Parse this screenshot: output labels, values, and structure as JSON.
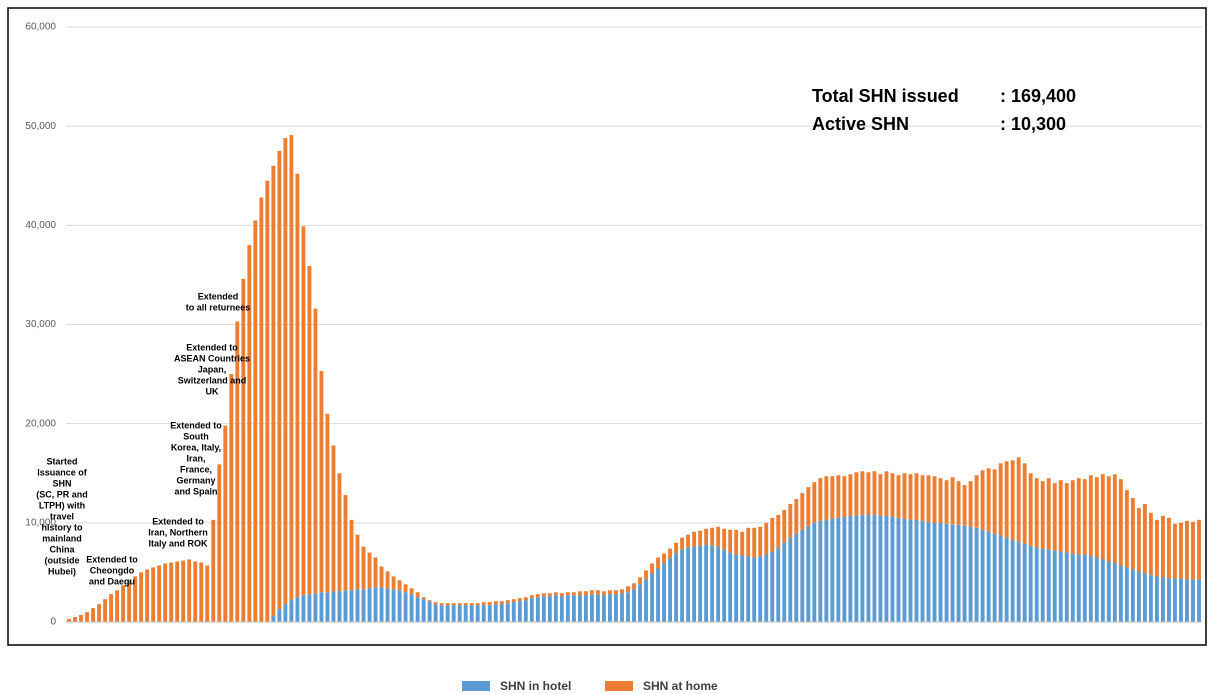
{
  "chart_data": {
    "type": "stacked-bar",
    "categories": [
      null,
      null,
      null,
      null,
      null,
      null,
      null,
      null,
      null,
      null,
      null,
      null,
      null,
      null,
      null,
      null,
      null,
      null,
      null,
      null,
      null,
      null,
      null,
      null,
      null,
      null,
      null,
      null,
      null,
      null,
      null,
      null,
      null,
      null,
      null,
      null,
      null,
      null,
      null,
      null,
      null,
      null,
      null,
      null,
      null,
      null,
      null,
      null,
      null,
      null,
      null,
      null,
      null,
      null,
      null,
      null,
      null,
      null,
      null,
      null,
      null,
      null,
      null,
      null,
      null,
      null,
      null,
      null,
      null,
      null,
      null,
      null,
      null,
      null,
      null,
      null,
      null,
      null,
      null,
      null,
      null,
      null,
      null,
      null,
      null,
      null,
      null,
      null,
      null,
      null,
      null,
      null,
      null,
      null,
      null,
      null,
      null,
      null,
      null,
      null,
      null,
      null,
      null,
      null,
      null,
      null,
      null,
      null,
      null,
      null,
      null,
      null,
      null,
      null,
      null,
      null,
      null,
      null,
      null,
      null,
      null,
      null,
      null,
      null,
      null,
      null,
      null,
      null,
      null,
      null,
      null,
      null,
      null,
      null,
      null,
      null,
      null,
      null,
      null,
      null,
      null,
      null,
      null,
      null,
      null,
      null,
      null,
      null,
      null,
      null,
      null,
      null,
      null,
      null,
      null,
      null,
      null,
      null,
      null,
      null,
      null,
      null,
      null,
      null,
      null,
      null,
      null,
      null,
      null,
      null,
      null,
      null,
      null,
      null,
      null,
      null,
      null,
      null,
      null,
      null,
      null,
      null,
      null,
      null,
      null,
      null,
      null,
      null,
      null
    ],
    "series": [
      {
        "name": "SHN in hotel",
        "color": "#5b9bd5",
        "values": [
          0,
          0,
          0,
          0,
          0,
          0,
          0,
          0,
          0,
          0,
          0,
          0,
          0,
          0,
          0,
          0,
          0,
          0,
          0,
          0,
          0,
          0,
          0,
          0,
          0,
          0,
          0,
          0,
          0,
          0,
          0,
          0,
          0,
          0,
          600,
          1300,
          1800,
          2200,
          2500,
          2700,
          2800,
          2900,
          3000,
          3000,
          3100,
          3100,
          3200,
          3200,
          3300,
          3300,
          3400,
          3500,
          3500,
          3400,
          3300,
          3200,
          3000,
          2800,
          2500,
          2300,
          2100,
          1800,
          1700,
          1700,
          1700,
          1700,
          1700,
          1700,
          1700,
          1700,
          1700,
          1800,
          1800,
          1900,
          2000,
          2100,
          2200,
          2400,
          2500,
          2600,
          2600,
          2700,
          2600,
          2700,
          2700,
          2700,
          2700,
          2800,
          2800,
          2700,
          2800,
          2800,
          2900,
          3000,
          3300,
          3800,
          4300,
          4900,
          5400,
          5900,
          6400,
          6900,
          7300,
          7500,
          7600,
          7700,
          7800,
          7700,
          7600,
          7300,
          7000,
          6800,
          6700,
          6600,
          6500,
          6600,
          6800,
          7100,
          7500,
          8000,
          8500,
          8900,
          9300,
          9700,
          10000,
          10200,
          10300,
          10400,
          10500,
          10600,
          10700,
          10700,
          10800,
          10800,
          10800,
          10700,
          10700,
          10600,
          10500,
          10400,
          10300,
          10300,
          10200,
          10100,
          10000,
          10000,
          9900,
          9800,
          9800,
          9700,
          9600,
          9500,
          9300,
          9100,
          8900,
          8700,
          8500,
          8300,
          8100,
          7900,
          7700,
          7500,
          7400,
          7300,
          7200,
          7100,
          7000,
          6900,
          6800,
          6800,
          6700,
          6500,
          6300,
          6100,
          5900,
          5700,
          5500,
          5300,
          5100,
          4900,
          4700,
          4600,
          4500,
          4400,
          4400,
          4400,
          4300,
          4300,
          4300
        ]
      },
      {
        "name": "SHN at home",
        "color": "#ed7d31",
        "values": [
          300,
          500,
          700,
          1000,
          1400,
          1800,
          2300,
          2800,
          3200,
          3700,
          4200,
          4600,
          5000,
          5300,
          5500,
          5700,
          5900,
          6000,
          6100,
          6200,
          6300,
          6100,
          6000,
          5700,
          10300,
          15900,
          19800,
          25000,
          30300,
          34600,
          38000,
          40500,
          42800,
          44500,
          45400,
          46200,
          47000,
          46900,
          42700,
          37200,
          33100,
          28700,
          22300,
          18000,
          14700,
          11900,
          9600,
          7100,
          5500,
          4300,
          3600,
          3000,
          2100,
          1700,
          1300,
          1000,
          800,
          600,
          500,
          200,
          100,
          200,
          200,
          200,
          200,
          200,
          200,
          200,
          200,
          300,
          300,
          300,
          300,
          300,
          300,
          300,
          300,
          300,
          300,
          300,
          300,
          300,
          300,
          300,
          300,
          400,
          400,
          400,
          400,
          400,
          400,
          400,
          400,
          600,
          600,
          700,
          900,
          1000,
          1100,
          1000,
          1000,
          1100,
          1200,
          1300,
          1500,
          1500,
          1600,
          1800,
          2000,
          2100,
          2300,
          2500,
          2400,
          2900,
          3000,
          3000,
          3200,
          3400,
          3300,
          3300,
          3400,
          3500,
          3700,
          3900,
          4100,
          4300,
          4400,
          4300,
          4300,
          4100,
          4200,
          4400,
          4400,
          4300,
          4400,
          4200,
          4500,
          4400,
          4300,
          4600,
          4600,
          4700,
          4600,
          4700,
          4700,
          4500,
          4400,
          4800,
          4400,
          4100,
          4600,
          5300,
          6000,
          6400,
          6500,
          7300,
          7700,
          8000,
          8500,
          8100,
          7300,
          7000,
          6800,
          7200,
          6800,
          7200,
          7000,
          7400,
          7700,
          7600,
          8100,
          8100,
          8600,
          8600,
          9000,
          8700,
          7800,
          7200,
          6400,
          7000,
          6300,
          5700,
          6200,
          6100,
          5500,
          5600,
          5900,
          5800,
          6000
        ]
      }
    ],
    "ylim": [
      0,
      60000
    ],
    "yticks": [
      0,
      {
        "value": 10000,
        "label": "10,000"
      },
      {
        "value": 20000,
        "label": "20,000"
      },
      {
        "value": 30000,
        "label": "30,000"
      },
      {
        "value": 40000,
        "label": "40,000"
      },
      {
        "value": 50000,
        "label": "50,000"
      },
      {
        "value": 60000,
        "label": "60,000"
      }
    ],
    "grid": true,
    "annotations": [
      [
        "Started",
        "Issuance of",
        "SHN",
        "(SC, PR and",
        "LTPH) with",
        "travel",
        "history to",
        "mainland",
        "China",
        "(outside",
        "Hubei)"
      ],
      [
        "Extended to",
        "Cheongdo",
        "and Daegu"
      ],
      [
        "Extended to",
        "Iran, Northern",
        "Italy and ROK"
      ],
      [
        "Extended to",
        "South",
        "Korea, Italy,",
        "Iran,",
        "France,",
        "Germany",
        "and Spain"
      ],
      [
        "Extended to",
        "ASEAN Countries",
        "Japan,",
        "Switzerland and",
        "UK"
      ],
      [
        "Extended",
        "to all returnees"
      ]
    ],
    "summary": [
      [
        "Total SHN issued",
        ": 169,400"
      ],
      [
        "Active SHN",
        ": 10,300"
      ]
    ]
  }
}
